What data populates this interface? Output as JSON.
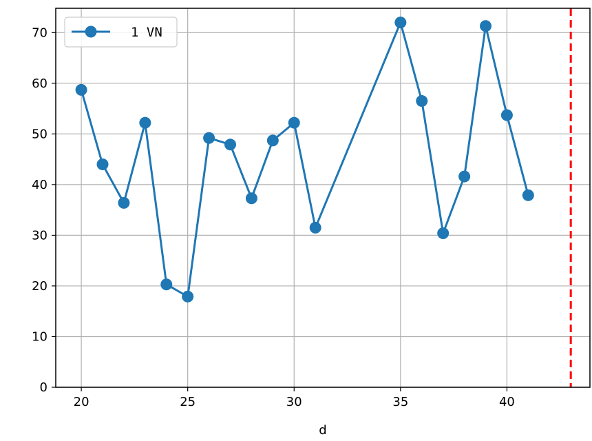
{
  "chart_data": {
    "type": "line",
    "title": "",
    "xlabel": "d",
    "ylabel": "",
    "xlim": [
      18.8,
      43.9
    ],
    "ylim": [
      0,
      74.8
    ],
    "xticks": [
      20,
      25,
      30,
      35,
      40
    ],
    "yticks": [
      0,
      10,
      20,
      30,
      40,
      50,
      60,
      70
    ],
    "xtick_labels": [
      "20",
      "25",
      "30",
      "35",
      "40"
    ],
    "ytick_labels": [
      "0",
      "10",
      "20",
      "30",
      "40",
      "50",
      "60",
      "70"
    ],
    "grid": true,
    "legend_position": "top-left",
    "series": [
      {
        "name": "1 VN",
        "color": "#1f77b4",
        "marker": "circle",
        "x": [
          20,
          21,
          22,
          23,
          24,
          25,
          26,
          27,
          28,
          29,
          30,
          31,
          35,
          36,
          37,
          38,
          39,
          40,
          41
        ],
        "y": [
          58.7,
          44.0,
          36.4,
          52.2,
          20.3,
          17.9,
          49.2,
          47.9,
          37.3,
          48.7,
          52.2,
          31.5,
          72.0,
          56.5,
          30.4,
          41.6,
          71.3,
          53.7,
          37.9
        ]
      }
    ],
    "reference_lines": [
      {
        "orientation": "vertical",
        "x": 43,
        "color": "#ff0000",
        "style": "dashed"
      }
    ]
  }
}
